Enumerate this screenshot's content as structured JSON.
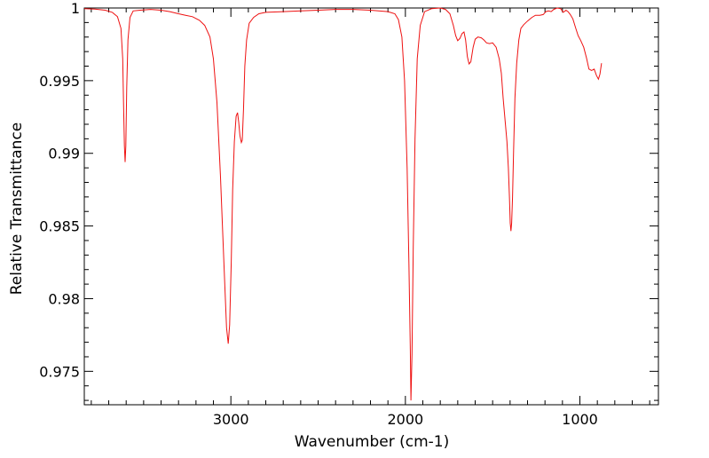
{
  "chart_data": {
    "type": "line",
    "title": "",
    "xlabel": "Wavenumber (cm-1)",
    "ylabel": "Relative Transmittance",
    "xlim": [
      3840,
      550
    ],
    "ylim": [
      0.9727,
      1.0
    ],
    "x_reversed": true,
    "grid": false,
    "legend": "none",
    "x_tick_labels": [
      {
        "value": 3000,
        "label": "3000"
      },
      {
        "value": 2000,
        "label": "2000"
      },
      {
        "value": 1000,
        "label": "1000"
      }
    ],
    "y_tick_labels": [
      {
        "value": 1.0,
        "label": "1"
      },
      {
        "value": 0.995,
        "label": "0.995"
      },
      {
        "value": 0.99,
        "label": "0.99"
      },
      {
        "value": 0.985,
        "label": "0.985"
      },
      {
        "value": 0.98,
        "label": "0.98"
      },
      {
        "value": 0.975,
        "label": "0.975"
      }
    ],
    "series": [
      {
        "color": "#ee1111",
        "points": [
          [
            3840,
            0.99995
          ],
          [
            3780,
            0.99992
          ],
          [
            3720,
            0.99985
          ],
          [
            3680,
            0.9997
          ],
          [
            3650,
            0.9994
          ],
          [
            3630,
            0.9986
          ],
          [
            3620,
            0.9965
          ],
          [
            3615,
            0.9935
          ],
          [
            3610,
            0.9905
          ],
          [
            3606,
            0.9894
          ],
          [
            3602,
            0.9905
          ],
          [
            3597,
            0.9945
          ],
          [
            3590,
            0.9978
          ],
          [
            3578,
            0.99935
          ],
          [
            3560,
            0.9998
          ],
          [
            3520,
            0.99985
          ],
          [
            3460,
            0.9999
          ],
          [
            3400,
            0.99985
          ],
          [
            3350,
            0.99975
          ],
          [
            3300,
            0.9996
          ],
          [
            3260,
            0.9995
          ],
          [
            3220,
            0.9994
          ],
          [
            3180,
            0.99915
          ],
          [
            3150,
            0.9988
          ],
          [
            3120,
            0.998
          ],
          [
            3100,
            0.9965
          ],
          [
            3080,
            0.9935
          ],
          [
            3060,
            0.9885
          ],
          [
            3040,
            0.9825
          ],
          [
            3025,
            0.978
          ],
          [
            3015,
            0.9769
          ],
          [
            3007,
            0.9782
          ],
          [
            2998,
            0.9825
          ],
          [
            2990,
            0.9875
          ],
          [
            2980,
            0.9908
          ],
          [
            2970,
            0.99255
          ],
          [
            2962,
            0.9928
          ],
          [
            2955,
            0.99215
          ],
          [
            2948,
            0.9912
          ],
          [
            2940,
            0.99075
          ],
          [
            2935,
            0.9909
          ],
          [
            2928,
            0.993
          ],
          [
            2920,
            0.996
          ],
          [
            2910,
            0.9978
          ],
          [
            2895,
            0.99895
          ],
          [
            2870,
            0.99935
          ],
          [
            2840,
            0.9996
          ],
          [
            2800,
            0.9997
          ],
          [
            2700,
            0.99975
          ],
          [
            2600,
            0.9998
          ],
          [
            2500,
            0.99985
          ],
          [
            2400,
            0.9999
          ],
          [
            2300,
            0.9999
          ],
          [
            2200,
            0.99985
          ],
          [
            2100,
            0.99975
          ],
          [
            2060,
            0.9996
          ],
          [
            2040,
            0.9992
          ],
          [
            2020,
            0.998
          ],
          [
            2005,
            0.995
          ],
          [
            1990,
            0.989
          ],
          [
            1980,
            0.9825
          ],
          [
            1972,
            0.9765
          ],
          [
            1968,
            0.973
          ],
          [
            1962,
            0.9762
          ],
          [
            1955,
            0.9835
          ],
          [
            1945,
            0.991
          ],
          [
            1932,
            0.9965
          ],
          [
            1915,
            0.9988
          ],
          [
            1890,
            0.99975
          ],
          [
            1850,
            0.99995
          ],
          [
            1800,
            1.0
          ],
          [
            1770,
            0.9999
          ],
          [
            1745,
            0.9996
          ],
          [
            1725,
            0.9988
          ],
          [
            1712,
            0.9981
          ],
          [
            1700,
            0.99775
          ],
          [
            1688,
            0.9979
          ],
          [
            1675,
            0.99825
          ],
          [
            1664,
            0.99835
          ],
          [
            1655,
            0.9978
          ],
          [
            1645,
            0.99665
          ],
          [
            1635,
            0.99615
          ],
          [
            1625,
            0.9963
          ],
          [
            1612,
            0.9973
          ],
          [
            1600,
            0.99785
          ],
          [
            1585,
            0.998
          ],
          [
            1565,
            0.99795
          ],
          [
            1550,
            0.9978
          ],
          [
            1535,
            0.9976
          ],
          [
            1518,
            0.99755
          ],
          [
            1500,
            0.9976
          ],
          [
            1480,
            0.9973
          ],
          [
            1462,
            0.9965
          ],
          [
            1450,
            0.9955
          ],
          [
            1440,
            0.9938
          ],
          [
            1428,
            0.9922
          ],
          [
            1418,
            0.9908
          ],
          [
            1410,
            0.989
          ],
          [
            1404,
            0.987
          ],
          [
            1399,
            0.9852
          ],
          [
            1395,
            0.98465
          ],
          [
            1391,
            0.9852
          ],
          [
            1386,
            0.987
          ],
          [
            1380,
            0.9902
          ],
          [
            1372,
            0.9938
          ],
          [
            1362,
            0.9962
          ],
          [
            1350,
            0.9978
          ],
          [
            1338,
            0.9986
          ],
          [
            1322,
            0.99885
          ],
          [
            1300,
            0.9991
          ],
          [
            1275,
            0.99935
          ],
          [
            1255,
            0.9995
          ],
          [
            1230,
            0.9995
          ],
          [
            1210,
            0.99955
          ],
          [
            1195,
            0.99975
          ],
          [
            1180,
            0.9998
          ],
          [
            1165,
            0.99975
          ],
          [
            1150,
            0.9999
          ],
          [
            1130,
            1.0
          ],
          [
            1110,
            0.99995
          ],
          [
            1095,
            0.9997
          ],
          [
            1080,
            0.99985
          ],
          [
            1068,
            0.99975
          ],
          [
            1055,
            0.99955
          ],
          [
            1040,
            0.99925
          ],
          [
            1025,
            0.99865
          ],
          [
            1010,
            0.9981
          ],
          [
            995,
            0.99775
          ],
          [
            978,
            0.9973
          ],
          [
            962,
            0.99655
          ],
          [
            948,
            0.9958
          ],
          [
            933,
            0.9957
          ],
          [
            918,
            0.9958
          ],
          [
            905,
            0.99535
          ],
          [
            894,
            0.9951
          ],
          [
            885,
            0.99545
          ],
          [
            876,
            0.9962
          ]
        ]
      }
    ]
  }
}
